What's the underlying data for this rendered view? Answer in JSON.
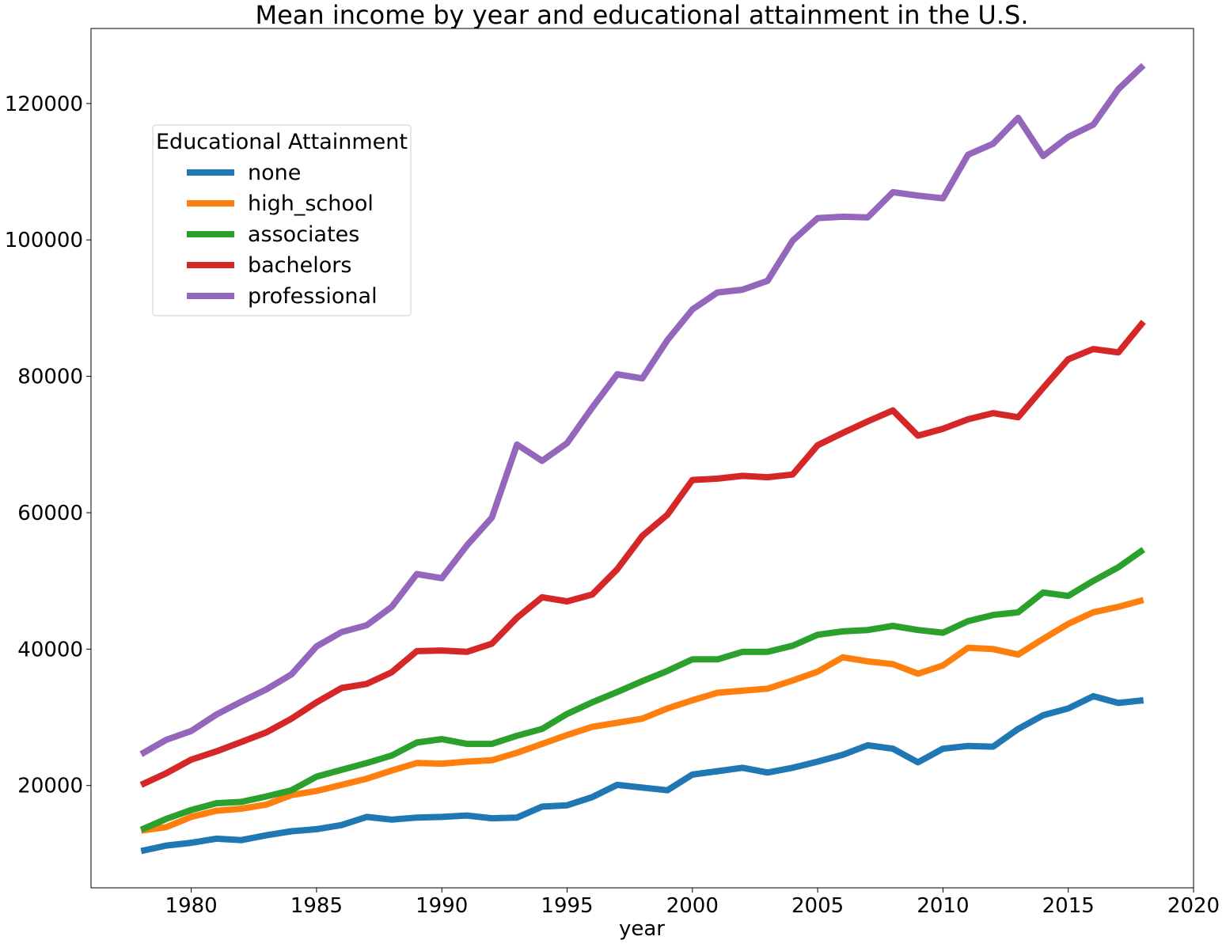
{
  "chart_data": {
    "type": "line",
    "title": "Mean income by year and educational attainment in the U.S.",
    "xlabel": "year",
    "ylabel": "",
    "xlim": [
      1976,
      2020
    ],
    "ylim": [
      5000,
      131000
    ],
    "x_ticks": [
      1980,
      1985,
      1990,
      1995,
      2000,
      2005,
      2010,
      2015,
      2020
    ],
    "y_ticks": [
      20000,
      40000,
      60000,
      80000,
      100000,
      120000
    ],
    "grid": false,
    "legend": {
      "title": "Educational Attainment",
      "position": "upper-left"
    },
    "x": [
      1978,
      1979,
      1980,
      1981,
      1982,
      1983,
      1984,
      1985,
      1986,
      1987,
      1988,
      1989,
      1990,
      1991,
      1992,
      1993,
      1994,
      1995,
      1996,
      1997,
      1998,
      1999,
      2000,
      2001,
      2002,
      2003,
      2004,
      2005,
      2006,
      2007,
      2008,
      2009,
      2010,
      2011,
      2012,
      2013,
      2014,
      2015,
      2016,
      2017,
      2018
    ],
    "series": [
      {
        "name": "none",
        "color": "#1f77b4",
        "values": [
          10400,
          11200,
          11600,
          12200,
          12000,
          12700,
          13300,
          13600,
          14200,
          15400,
          15000,
          15300,
          15400,
          15600,
          15200,
          15300,
          16900,
          17100,
          18300,
          20100,
          19700,
          19300,
          21600,
          22100,
          22600,
          21900,
          22600,
          23500,
          24500,
          25900,
          25400,
          23400,
          25400,
          25800,
          25700,
          28300,
          30300,
          31300,
          33100,
          32100,
          32500
        ]
      },
      {
        "name": "high_school",
        "color": "#ff7f0e",
        "values": [
          13400,
          13900,
          15400,
          16300,
          16600,
          17200,
          18600,
          19200,
          20100,
          21000,
          22200,
          23300,
          23200,
          23500,
          23700,
          24800,
          26100,
          27400,
          28600,
          29200,
          29800,
          31300,
          32500,
          33600,
          33900,
          34200,
          35400,
          36700,
          38800,
          38200,
          37800,
          36400,
          37600,
          40200,
          40000,
          39200,
          41500,
          43700,
          45400,
          46200,
          47200
        ]
      },
      {
        "name": "associates",
        "color": "#2ca02c",
        "values": [
          13500,
          15100,
          16400,
          17400,
          17600,
          18400,
          19300,
          21300,
          22300,
          23300,
          24400,
          26300,
          26800,
          26100,
          26100,
          27300,
          28300,
          30500,
          32200,
          33700,
          35300,
          36800,
          38500,
          38500,
          39600,
          39600,
          40500,
          42100,
          42600,
          42800,
          43400,
          42800,
          42400,
          44100,
          45000,
          45400,
          48300,
          47800,
          50000,
          52000,
          54600
        ]
      },
      {
        "name": "bachelors",
        "color": "#d62728",
        "values": [
          20100,
          21800,
          23800,
          25000,
          26400,
          27800,
          29800,
          32200,
          34300,
          34900,
          36600,
          39700,
          39800,
          39600,
          40800,
          44600,
          47600,
          47000,
          48000,
          51700,
          56600,
          59700,
          64800,
          65000,
          65400,
          65200,
          65600,
          69900,
          71700,
          73400,
          75000,
          71300,
          72300,
          73700,
          74600,
          74000,
          78300,
          82500,
          84000,
          83500,
          88000
        ]
      },
      {
        "name": "professional",
        "color": "#9467bd",
        "values": [
          24600,
          26700,
          28000,
          30400,
          32300,
          34100,
          36300,
          40400,
          42500,
          43500,
          46200,
          51000,
          50400,
          55200,
          59300,
          70000,
          67600,
          70200,
          75400,
          80300,
          79700,
          85300,
          89800,
          92300,
          92700,
          94000,
          99900,
          103200,
          103400,
          103300,
          107000,
          106500,
          106100,
          112500,
          114100,
          117900,
          112300,
          115100,
          116900,
          122100,
          125600
        ]
      }
    ]
  }
}
